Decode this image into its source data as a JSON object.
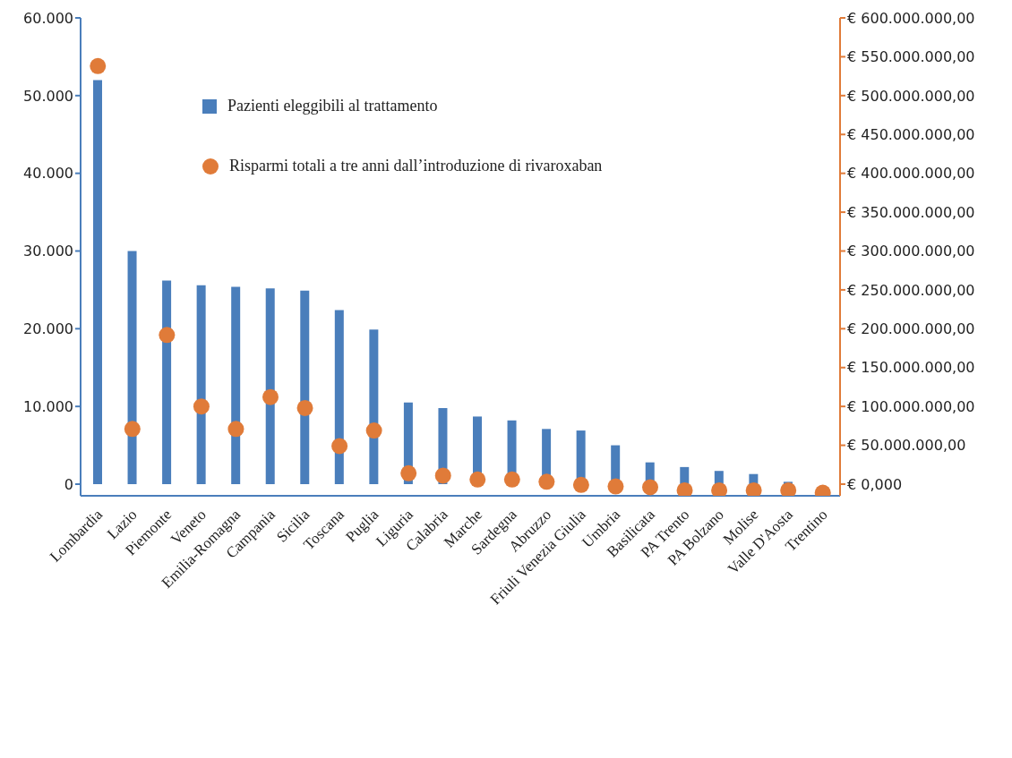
{
  "chart_data": {
    "type": "bar",
    "categories": [
      "Lombardia",
      "Lazio",
      "Piemonte",
      "Veneto",
      "Emilia-Romagna",
      "Campania",
      "Sicilia",
      "Toscana",
      "Puglia",
      "Liguria",
      "Calabria",
      "Marche",
      "Sardegna",
      "Abruzzo",
      "Friuli Venezia Giulia",
      "Umbria",
      "Basilicata",
      "PA Trento",
      "PA Bolzano",
      "Molise",
      "Valle D'Aosta",
      "Trentino"
    ],
    "series": [
      {
        "name": "Pazienti eleggibili al trattamento",
        "color": "#4a7ebb",
        "values": [
          52000,
          30000,
          26200,
          25600,
          25400,
          25200,
          24900,
          22400,
          19900,
          10500,
          9800,
          8700,
          8200,
          7100,
          6900,
          5000,
          2800,
          2200,
          1700,
          1300,
          300,
          null
        ]
      },
      {
        "name": "Risparmi totali a tre anni dall’introduzione di rivaroxaban",
        "type": "scatter",
        "axis": "y2",
        "color": "#e07b39",
        "values": [
          538000000,
          71000000,
          192000000,
          100000000,
          71000000,
          112000000,
          98000000,
          49000000,
          69000000,
          14000000,
          11000000,
          6000000,
          6000000,
          3000000,
          -1000000,
          -3000000,
          -4000000,
          -8000000,
          -8000000,
          -8000000,
          -8000000,
          -11000000
        ]
      }
    ],
    "ylim": [
      -1500,
      60000
    ],
    "yticks": [
      {
        "value": 0,
        "label": "0"
      },
      {
        "value": 10000,
        "label": "10.000"
      },
      {
        "value": 20000,
        "label": "20.000"
      },
      {
        "value": 30000,
        "label": "30.000"
      },
      {
        "value": 40000,
        "label": "40.000"
      },
      {
        "value": 50000,
        "label": "50.000"
      },
      {
        "value": 60000,
        "label": "60.000"
      }
    ],
    "y2lim": [
      -15000000,
      600000000
    ],
    "y2ticks": [
      {
        "value": 0,
        "label": "€ 0,000"
      },
      {
        "value": 50000000,
        "label": "€ 50.000.000,00"
      },
      {
        "value": 100000000,
        "label": "€ 100.000.000,00"
      },
      {
        "value": 150000000,
        "label": "€ 150.000.000,00"
      },
      {
        "value": 200000000,
        "label": "€ 200.000.000,00"
      },
      {
        "value": 250000000,
        "label": "€ 250.000.000,00"
      },
      {
        "value": 300000000,
        "label": "€ 300.000.000,00"
      },
      {
        "value": 350000000,
        "label": "€ 350.000.000,00"
      },
      {
        "value": 400000000,
        "label": "€ 400.000.000,00"
      },
      {
        "value": 450000000,
        "label": "€ 450.000.000,00"
      },
      {
        "value": 500000000,
        "label": "€ 500.000.000,00"
      },
      {
        "value": 550000000,
        "label": "€ 550.000.000,00"
      },
      {
        "value": 600000000,
        "label": "€ 600.000.000,00"
      }
    ],
    "grid": false,
    "legend": "top left",
    "marker": "circle"
  }
}
